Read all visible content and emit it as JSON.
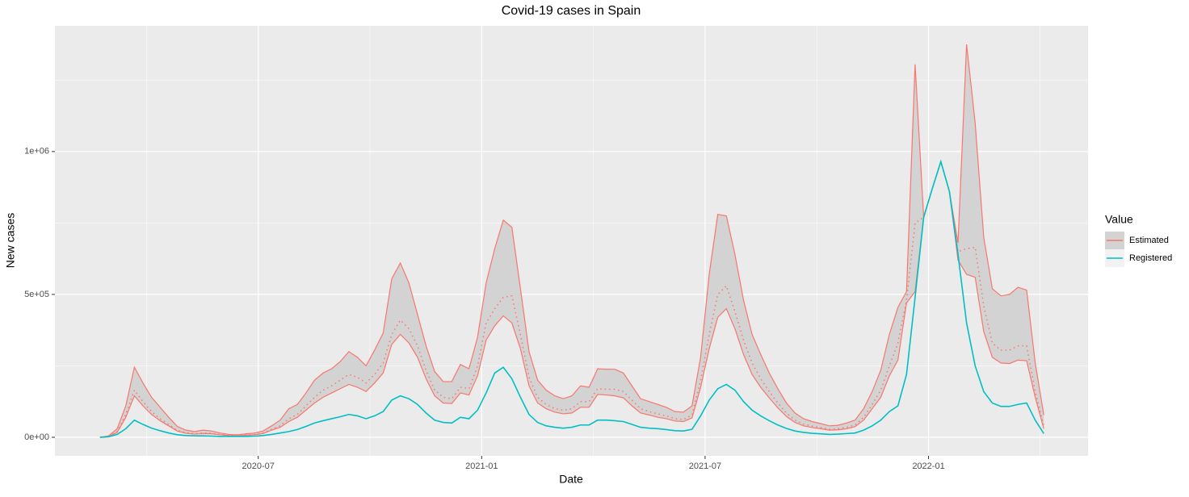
{
  "chart_data": {
    "type": "line",
    "title": "Covid-19 cases in Spain",
    "x_label": "Date",
    "y_label": "New cases",
    "legend_title": "Value",
    "legend": "right",
    "grid": true,
    "xlim": [
      2020.045,
      2022.357
    ],
    "xticks": [
      {
        "value": 2020.5,
        "label": "2020-07"
      },
      {
        "value": 2021.0,
        "label": "2021-01"
      },
      {
        "value": 2021.5,
        "label": "2021-07"
      },
      {
        "value": 2022.0,
        "label": "2022-01"
      }
    ],
    "ylim": [
      -65000,
      1440000
    ],
    "yticks": [
      {
        "value": 0,
        "label": "0e+00"
      },
      {
        "value": 500000,
        "label": "5e+05"
      },
      {
        "value": 1000000,
        "label": "1e+06"
      }
    ],
    "x": [
      2020.146,
      2020.1652,
      2020.1844,
      2020.2036,
      2020.2228,
      2020.242,
      2020.2612,
      2020.2804,
      2020.2996,
      2020.3188,
      2020.338,
      2020.3572,
      2020.3764,
      2020.3956,
      2020.4148,
      2020.434,
      2020.4532,
      2020.4724,
      2020.4916,
      2020.5108,
      2020.53,
      2020.5492,
      2020.5684,
      2020.5876,
      2020.6068,
      2020.626,
      2020.6452,
      2020.6644,
      2020.6836,
      2020.7028,
      2020.722,
      2020.7412,
      2020.7604,
      2020.7796,
      2020.7988,
      2020.818,
      2020.8372,
      2020.8564,
      2020.8756,
      2020.8948,
      2020.914,
      2020.9332,
      2020.9524,
      2020.9716,
      2020.9908,
      2021.01,
      2021.0292,
      2021.0484,
      2021.0676,
      2021.0868,
      2021.106,
      2021.1252,
      2021.1444,
      2021.1636,
      2021.1828,
      2021.202,
      2021.2212,
      2021.2404,
      2021.2596,
      2021.2788,
      2021.298,
      2021.3172,
      2021.3364,
      2021.3556,
      2021.3748,
      2021.394,
      2021.4132,
      2021.4324,
      2021.4516,
      2021.4708,
      2021.49,
      2021.5092,
      2021.5284,
      2021.5476,
      2021.5668,
      2021.586,
      2021.6052,
      2021.6244,
      2021.6436,
      2021.6628,
      2021.682,
      2021.7012,
      2021.7204,
      2021.7396,
      2021.7588,
      2021.778,
      2021.7972,
      2021.8164,
      2021.8356,
      2021.8548,
      2021.874,
      2021.8932,
      2021.9124,
      2021.9316,
      2021.9508,
      2021.97,
      2021.9892,
      2022.0084,
      2022.0276,
      2022.0468,
      2022.066,
      2022.0852,
      2022.1044,
      2022.1236,
      2022.1428,
      2022.162,
      2022.1812,
      2022.2004,
      2022.2196,
      2022.2388,
      2022.258
    ],
    "series": [
      {
        "name": "Estimated",
        "color": "#F8766D",
        "band_color": "#D3D3D3",
        "values": [
          0,
          3000,
          20000,
          80000,
          165000,
          125000,
          90000,
          65000,
          45000,
          24000,
          16000,
          13000,
          15000,
          14000,
          10000,
          7000,
          6000,
          8000,
          10000,
          15000,
          28000,
          40000,
          65000,
          80000,
          110000,
          140000,
          165000,
          180000,
          200000,
          220000,
          210000,
          190000,
          220000,
          260000,
          360000,
          410000,
          380000,
          320000,
          235000,
          165000,
          140000,
          135000,
          175000,
          170000,
          250000,
          400000,
          450000,
          490000,
          495000,
          360000,
          210000,
          140000,
          115000,
          100000,
          95000,
          100000,
          125000,
          125000,
          170000,
          168000,
          168000,
          160000,
          130000,
          100000,
          90000,
          82000,
          75000,
          65000,
          62000,
          78000,
          200000,
          360000,
          500000,
          530000,
          440000,
          340000,
          260000,
          205000,
          160000,
          120000,
          85000,
          60000,
          46000,
          39000,
          34000,
          28000,
          30000,
          35000,
          43000,
          70000,
          115000,
          165000,
          250000,
          330000,
          480000,
          750000,
          770000,
          870000,
          965000,
          860000,
          650000,
          660000,
          665000,
          460000,
          330000,
          305000,
          305000,
          320000,
          320000,
          160000,
          40000
        ],
        "lower": [
          0,
          3000,
          17000,
          70000,
          145000,
          110000,
          80000,
          58000,
          40000,
          22000,
          14000,
          11000,
          13000,
          12000,
          9000,
          6000,
          5000,
          7000,
          9000,
          13000,
          25000,
          35000,
          55000,
          70000,
          95000,
          120000,
          140000,
          155000,
          170000,
          185000,
          175000,
          160000,
          190000,
          225000,
          325000,
          360000,
          330000,
          280000,
          205000,
          145000,
          120000,
          118000,
          155000,
          148000,
          215000,
          340000,
          390000,
          425000,
          400000,
          310000,
          180000,
          120000,
          100000,
          88000,
          82000,
          85000,
          105000,
          105000,
          150000,
          148000,
          145000,
          138000,
          110000,
          85000,
          78000,
          70000,
          65000,
          57000,
          55000,
          68000,
          175000,
          310000,
          420000,
          450000,
          380000,
          290000,
          220000,
          175000,
          138000,
          103000,
          73000,
          52000,
          40000,
          34000,
          30000,
          25000,
          26000,
          30000,
          37000,
          60000,
          100000,
          140000,
          215000,
          270000,
          470000,
          510000,
          770000,
          870000,
          965000,
          860000,
          620000,
          570000,
          560000,
          370000,
          280000,
          260000,
          258000,
          270000,
          268000,
          140000,
          30000
        ],
        "upper": [
          0,
          5000,
          30000,
          110000,
          245000,
          190000,
          140000,
          105000,
          70000,
          38000,
          25000,
          20000,
          25000,
          22000,
          15000,
          10000,
          9000,
          12000,
          15000,
          22000,
          40000,
          60000,
          100000,
          115000,
          155000,
          200000,
          225000,
          240000,
          265000,
          300000,
          280000,
          250000,
          305000,
          365000,
          555000,
          610000,
          540000,
          430000,
          320000,
          230000,
          195000,
          195000,
          255000,
          240000,
          350000,
          540000,
          660000,
          760000,
          735000,
          520000,
          300000,
          200000,
          165000,
          145000,
          135000,
          145000,
          180000,
          175000,
          240000,
          238000,
          238000,
          225000,
          180000,
          135000,
          125000,
          115000,
          105000,
          90000,
          88000,
          110000,
          280000,
          570000,
          780000,
          775000,
          640000,
          480000,
          360000,
          290000,
          225000,
          170000,
          120000,
          85000,
          65000,
          55000,
          48000,
          40000,
          42000,
          50000,
          60000,
          100000,
          160000,
          235000,
          360000,
          455000,
          510000,
          1305000,
          770000,
          870000,
          965000,
          860000,
          680000,
          1375000,
          1100000,
          700000,
          520000,
          495000,
          500000,
          525000,
          515000,
          260000,
          78000
        ]
      },
      {
        "name": "Registered",
        "color": "#00BFC4",
        "values": [
          0,
          2000,
          10000,
          30000,
          60000,
          45000,
          32000,
          23000,
          15000,
          9000,
          6000,
          5000,
          5000,
          4000,
          3000,
          3000,
          3000,
          3000,
          4000,
          6000,
          10000,
          15000,
          20000,
          27000,
          38000,
          50000,
          58000,
          65000,
          72000,
          80000,
          75000,
          65000,
          75000,
          90000,
          130000,
          145000,
          135000,
          115000,
          85000,
          60000,
          52000,
          50000,
          70000,
          65000,
          95000,
          155000,
          225000,
          245000,
          205000,
          140000,
          80000,
          52000,
          40000,
          35000,
          32000,
          35000,
          43000,
          43000,
          60000,
          60000,
          58000,
          55000,
          45000,
          35000,
          32000,
          30000,
          27000,
          23000,
          22000,
          28000,
          75000,
          130000,
          170000,
          185000,
          165000,
          125000,
          95000,
          75000,
          58000,
          43000,
          31000,
          22000,
          17000,
          14000,
          12000,
          10000,
          11000,
          13000,
          15000,
          25000,
          40000,
          60000,
          90000,
          110000,
          220000,
          490000,
          770000,
          870000,
          965000,
          860000,
          640000,
          400000,
          250000,
          160000,
          120000,
          108000,
          108000,
          115000,
          120000,
          60000,
          13000
        ]
      }
    ]
  }
}
